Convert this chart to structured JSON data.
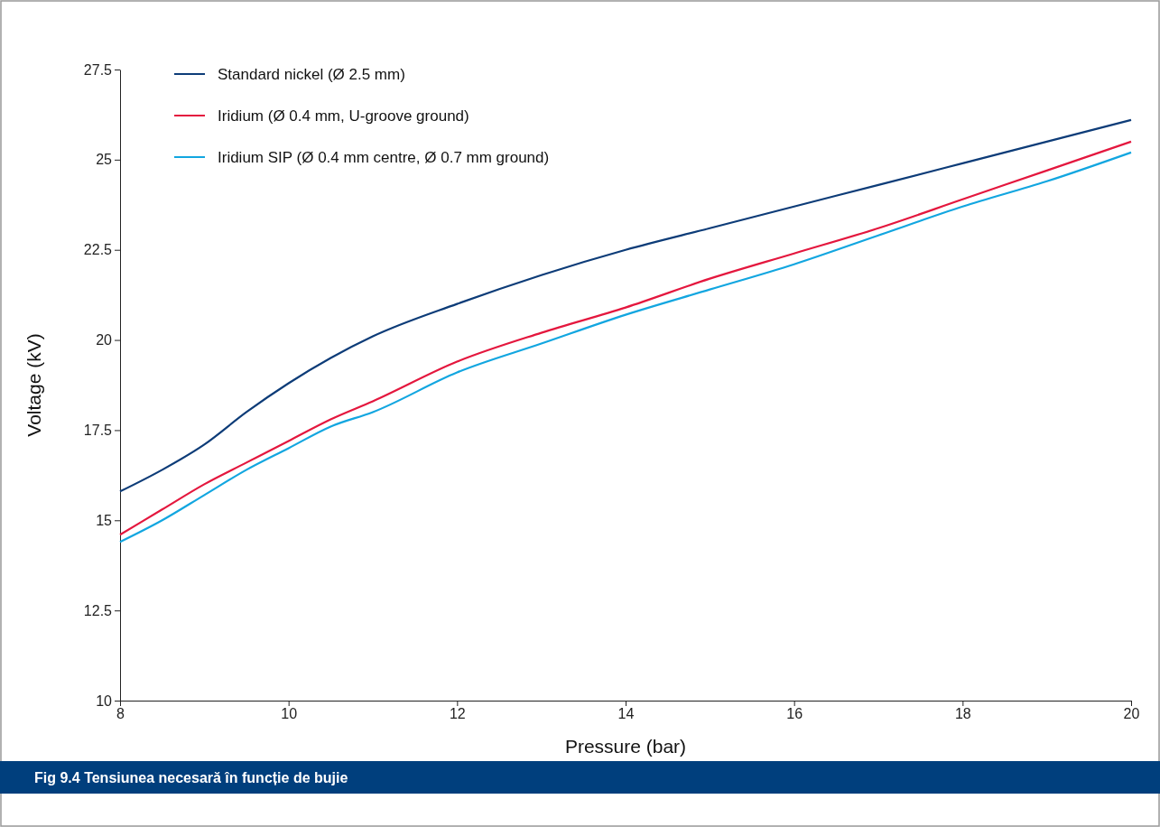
{
  "chart_data": {
    "type": "line",
    "title": "Fig 9.4  Tensiunea necesară în funcție de bujie",
    "xlabel": "Pressure (bar)",
    "ylabel": "Voltage (kV)",
    "x": [
      8,
      8.5,
      9,
      9.5,
      10,
      10.5,
      11,
      12,
      13,
      14,
      15,
      16,
      17,
      18,
      19,
      20
    ],
    "series": [
      {
        "name": "Standard nickel (Ø 2.5 mm)",
        "color": "#0d3c78",
        "values": [
          15.8,
          16.4,
          17.1,
          18.0,
          18.8,
          19.5,
          20.1,
          21.0,
          21.8,
          22.5,
          23.1,
          23.7,
          24.3,
          24.9,
          25.5,
          26.1
        ]
      },
      {
        "name": "Iridium (Ø 0.4 mm, U-groove ground)",
        "color": "#e4173e",
        "values": [
          14.6,
          15.3,
          16.0,
          16.6,
          17.2,
          17.8,
          18.3,
          19.4,
          20.2,
          20.9,
          21.7,
          22.4,
          23.1,
          23.9,
          24.7,
          25.5
        ]
      },
      {
        "name": "Iridium SIP (Ø 0.4 mm centre, Ø 0.7 mm ground)",
        "color": "#12a6e0",
        "values": [
          14.4,
          15.0,
          15.7,
          16.4,
          17.0,
          17.6,
          18.0,
          19.1,
          19.9,
          20.7,
          21.4,
          22.1,
          22.9,
          23.7,
          24.4,
          25.2
        ]
      }
    ],
    "xlim": [
      8,
      20
    ],
    "xticks": [
      8,
      10,
      12,
      14,
      16,
      18,
      20
    ],
    "ylim": [
      10,
      27.5
    ],
    "yticks": [
      10,
      12.5,
      15,
      17.5,
      20,
      22.5,
      25,
      27.5
    ],
    "grid": false,
    "legend": "top left",
    "marker": "none",
    "line_style": "solid"
  }
}
